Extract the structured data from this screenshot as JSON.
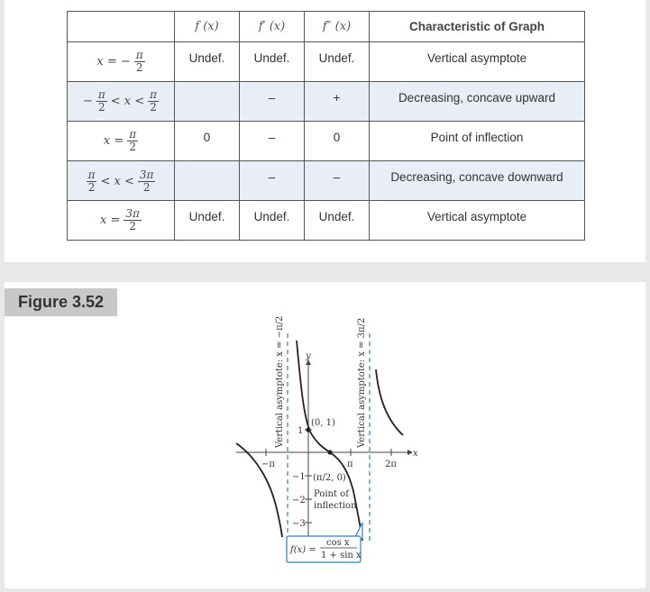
{
  "table": {
    "headers": {
      "col1": "f (x)",
      "col2": "f′ (x)",
      "col3": "f″ (x)",
      "col4": "Characteristic of Graph"
    },
    "rows": [
      {
        "interval_parts": [
          "x = −",
          "π",
          "2"
        ],
        "f": "Undef.",
        "f1": "Undef.",
        "f2": "Undef.",
        "characteristic": "Vertical asymptote"
      },
      {
        "interval_parts": [
          "−",
          "π",
          "2",
          "< x <",
          "π",
          "2"
        ],
        "f": "",
        "f1": "–",
        "f2": "+",
        "characteristic": "Decreasing, concave upward"
      },
      {
        "interval_parts": [
          "x =",
          "π",
          "2"
        ],
        "f": "0",
        "f1": "–",
        "f2": "0",
        "characteristic": "Point of inflection"
      },
      {
        "interval_parts": [
          "π",
          "2",
          "< x <",
          "3π",
          "2"
        ],
        "f": "",
        "f1": "–",
        "f2": "–",
        "characteristic": "Decreasing, concave downward"
      },
      {
        "interval_parts": [
          "x =",
          "3π",
          "2"
        ],
        "f": "Undef.",
        "f1": "Undef.",
        "f2": "Undef.",
        "characteristic": "Vertical asymptote"
      }
    ]
  },
  "figure": {
    "label": "Figure 3.52",
    "asymptote_left_label": "Vertical asymptote: x = −π/2",
    "asymptote_right_label": "Vertical asymptote: x = 3π/2",
    "y_axis_label": "y",
    "x_axis_label": "x",
    "x_ticks": [
      "−π",
      "π",
      "2π"
    ],
    "y_ticks": [
      "1",
      "−1",
      "−2",
      "−3"
    ],
    "point_label": "(0, 1)",
    "inflection_point_coord": "(π/2, 0)",
    "inflection_label_line1": "Point of",
    "inflection_label_line2": "inflection",
    "function_lhs": "f(x) =",
    "function_num": "cos x",
    "function_den": "1 + sin x",
    "accent_color": "#2a7fd4"
  }
}
